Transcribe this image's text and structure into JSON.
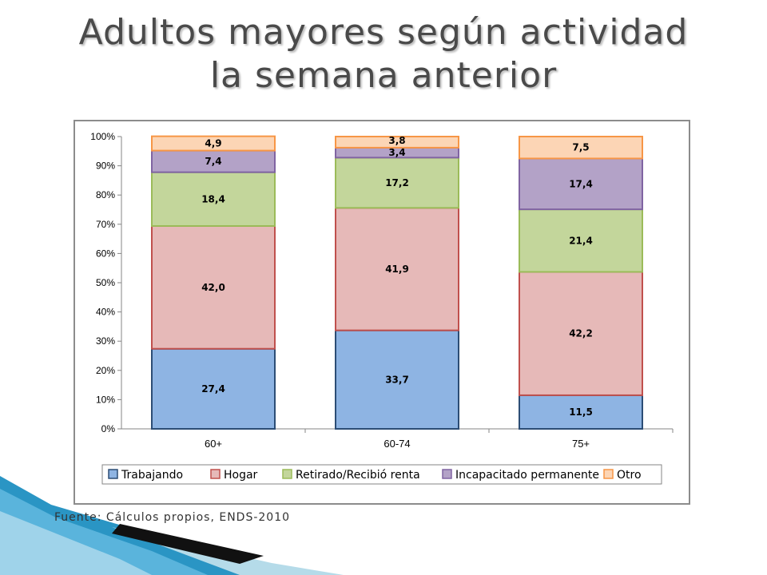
{
  "slide": {
    "title_line1": "Adultos mayores según actividad",
    "title_line2": "la semana anterior",
    "source": "Fuente: Cálculos propios, ENDS-2010"
  },
  "chart_data": {
    "type": "bar",
    "stacked": true,
    "percent": true,
    "categories": [
      "60+",
      "60-74",
      "75+"
    ],
    "series": [
      {
        "name": "Trabajando",
        "values": [
          27.4,
          33.7,
          11.5
        ],
        "labels": [
          "27,4",
          "33,7",
          "11,5"
        ],
        "color": "#8eb4e3",
        "border": "#2c4d75"
      },
      {
        "name": "Hogar",
        "values": [
          42.0,
          41.9,
          42.2
        ],
        "labels": [
          "42,0",
          "41,9",
          "42,2"
        ],
        "color": "#e6b9b8",
        "border": "#c0504d"
      },
      {
        "name": "Retirado/Recibió renta",
        "values": [
          18.4,
          17.2,
          21.4
        ],
        "labels": [
          "18,4",
          "17,2",
          "21,4"
        ],
        "color": "#c3d69b",
        "border": "#9bbb59"
      },
      {
        "name": "Incapacitado permanente",
        "values": [
          7.4,
          3.4,
          17.4
        ],
        "labels": [
          "7,4",
          "3,4",
          "17,4"
        ],
        "color": "#b3a2c7",
        "border": "#8064a2"
      },
      {
        "name": "Otro",
        "values": [
          4.9,
          3.8,
          7.5
        ],
        "labels": [
          "4,9",
          "3,8",
          "7,5"
        ],
        "color": "#fcd5b5",
        "border": "#f79646"
      }
    ],
    "yticks": [
      "0%",
      "10%",
      "20%",
      "30%",
      "40%",
      "50%",
      "60%",
      "70%",
      "80%",
      "90%",
      "100%"
    ],
    "ylim": [
      0,
      100
    ],
    "grid": false,
    "legend_position": "bottom"
  }
}
